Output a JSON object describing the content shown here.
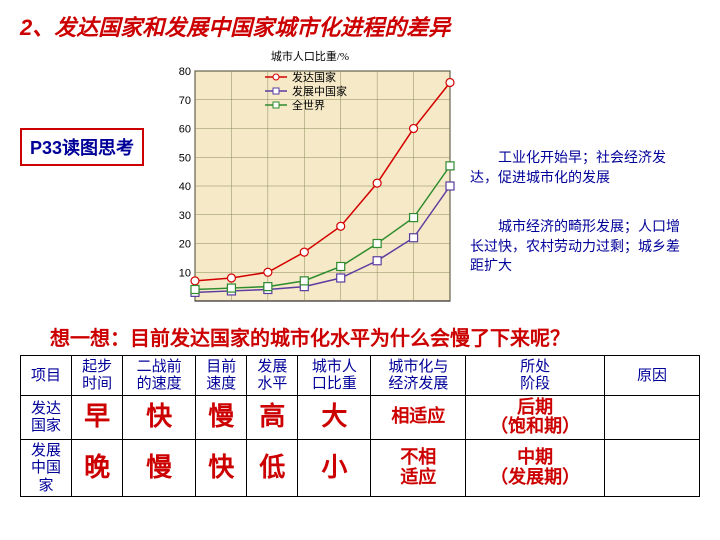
{
  "title": "2、发达国家和发展中国家城市化进程的差异",
  "badge": "P33读图思考",
  "chart": {
    "caption": "城市人口比重/%",
    "type": "line",
    "background_color": "#f5e9c8",
    "grid_color": "#8a8a5a",
    "axis_color": "#000000",
    "ylim": [
      0,
      80
    ],
    "ytick_step": 10,
    "yticks": [
      10,
      20,
      30,
      40,
      50,
      60,
      70,
      80
    ],
    "x_points": [
      0,
      1,
      2,
      3,
      4,
      5,
      6,
      7
    ],
    "legend": [
      {
        "label": "发达国家",
        "color": "#d40000",
        "marker": "circle"
      },
      {
        "label": "发展中国家",
        "color": "#5b3da0",
        "marker": "square"
      },
      {
        "label": "全世界",
        "color": "#2e8b2e",
        "marker": "square"
      }
    ],
    "series": {
      "developed": [
        7,
        8,
        10,
        17,
        26,
        41,
        60,
        76
      ],
      "world": [
        4,
        4.5,
        5,
        7,
        12,
        20,
        29,
        47
      ],
      "developing": [
        3,
        3.5,
        4,
        5,
        8,
        14,
        22,
        40
      ]
    },
    "line_width": 1.5,
    "marker_size": 4
  },
  "notes": {
    "n1": "工业化开始早；社会经济发达，促进城市化的发展",
    "n2": "城市经济的畸形发展；人口增长过快，农村劳动力过剩；城乡差距扩大"
  },
  "think": "想一想：目前发达国家的城市化水平为什么会慢了下来呢？",
  "table": {
    "headers": [
      "项目",
      "起步\n时间",
      "二战前\n的速度",
      "目前\n速度",
      "发展\n水平",
      "城市人\n口比重",
      "城市化与\n经济发展",
      "所处\n阶段",
      "原因"
    ],
    "rows": [
      {
        "head": "发达\n国家",
        "cells": [
          "早",
          "快",
          "慢",
          "高",
          "大",
          "相适应",
          "后期\n（饱和期）",
          ""
        ]
      },
      {
        "head": "发展\n中国\n家",
        "cells": [
          "晚",
          "慢",
          "快",
          "低",
          "小",
          "不相\n适应",
          "中期\n（发展期）",
          ""
        ]
      }
    ]
  }
}
